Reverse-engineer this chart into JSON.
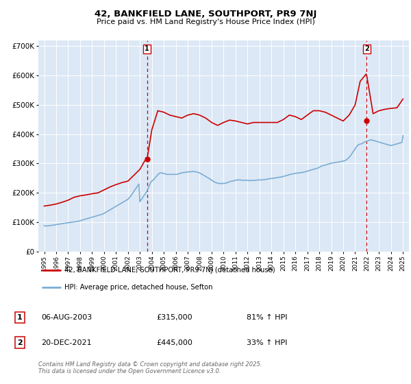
{
  "title": "42, BANKFIELD LANE, SOUTHPORT, PR9 7NJ",
  "subtitle": "Price paid vs. HM Land Registry's House Price Index (HPI)",
  "bg_color": "#dce8f5",
  "red_color": "#cc0000",
  "blue_color": "#7aadd4",
  "legend_label_red": "42, BANKFIELD LANE, SOUTHPORT, PR9 7NJ (detached house)",
  "legend_label_blue": "HPI: Average price, detached house, Sefton",
  "marker1_date_x": 2003.6,
  "marker1_price": 315000,
  "marker1_label": "1",
  "marker1_date_str": "06-AUG-2003",
  "marker1_price_str": "£315,000",
  "marker1_pct": "81% ↑ HPI",
  "marker2_date_x": 2021.97,
  "marker2_price": 445000,
  "marker2_label": "2",
  "marker2_date_str": "20-DEC-2021",
  "marker2_price_str": "£445,000",
  "marker2_pct": "33% ↑ HPI",
  "ylim_max": 720000,
  "xlim_min": 1994.5,
  "xlim_max": 2025.5,
  "yticks": [
    0,
    100000,
    200000,
    300000,
    400000,
    500000,
    600000,
    700000
  ],
  "ylabels": [
    "£0",
    "£100K",
    "£200K",
    "£300K",
    "£400K",
    "£500K",
    "£600K",
    "£700K"
  ],
  "xticks": [
    1995,
    1996,
    1997,
    1998,
    1999,
    2000,
    2001,
    2002,
    2003,
    2004,
    2005,
    2006,
    2007,
    2008,
    2009,
    2010,
    2011,
    2012,
    2013,
    2014,
    2015,
    2016,
    2017,
    2018,
    2019,
    2020,
    2021,
    2022,
    2023,
    2024,
    2025
  ],
  "footer": "Contains HM Land Registry data © Crown copyright and database right 2025.\nThis data is licensed under the Open Government Licence v3.0.",
  "hpi_dates": [
    1995.0,
    1995.08,
    1995.17,
    1995.25,
    1995.33,
    1995.42,
    1995.5,
    1995.58,
    1995.67,
    1995.75,
    1995.83,
    1995.92,
    1996.0,
    1996.08,
    1996.17,
    1996.25,
    1996.33,
    1996.42,
    1996.5,
    1996.58,
    1996.67,
    1996.75,
    1996.83,
    1996.92,
    1997.0,
    1997.08,
    1997.17,
    1997.25,
    1997.33,
    1997.42,
    1997.5,
    1997.58,
    1997.67,
    1997.75,
    1997.83,
    1997.92,
    1998.0,
    1998.08,
    1998.17,
    1998.25,
    1998.33,
    1998.42,
    1998.5,
    1998.58,
    1998.67,
    1998.75,
    1998.83,
    1998.92,
    1999.0,
    1999.08,
    1999.17,
    1999.25,
    1999.33,
    1999.42,
    1999.5,
    1999.58,
    1999.67,
    1999.75,
    1999.83,
    1999.92,
    2000.0,
    2000.08,
    2000.17,
    2000.25,
    2000.33,
    2000.42,
    2000.5,
    2000.58,
    2000.67,
    2000.75,
    2000.83,
    2000.92,
    2001.0,
    2001.08,
    2001.17,
    2001.25,
    2001.33,
    2001.42,
    2001.5,
    2001.58,
    2001.67,
    2001.75,
    2001.83,
    2001.92,
    2002.0,
    2002.08,
    2002.17,
    2002.25,
    2002.33,
    2002.42,
    2002.5,
    2002.58,
    2002.67,
    2002.75,
    2002.83,
    2002.92,
    2003.0,
    2003.08,
    2003.17,
    2003.25,
    2003.33,
    2003.42,
    2003.5,
    2003.58,
    2003.67,
    2003.75,
    2003.83,
    2003.92,
    2004.0,
    2004.08,
    2004.17,
    2004.25,
    2004.33,
    2004.42,
    2004.5,
    2004.58,
    2004.67,
    2004.75,
    2004.83,
    2004.92,
    2005.0,
    2005.08,
    2005.17,
    2005.25,
    2005.33,
    2005.42,
    2005.5,
    2005.58,
    2005.67,
    2005.75,
    2005.83,
    2005.92,
    2006.0,
    2006.08,
    2006.17,
    2006.25,
    2006.33,
    2006.42,
    2006.5,
    2006.58,
    2006.67,
    2006.75,
    2006.83,
    2006.92,
    2007.0,
    2007.08,
    2007.17,
    2007.25,
    2007.33,
    2007.42,
    2007.5,
    2007.58,
    2007.67,
    2007.75,
    2007.83,
    2007.92,
    2008.0,
    2008.08,
    2008.17,
    2008.25,
    2008.33,
    2008.42,
    2008.5,
    2008.58,
    2008.67,
    2008.75,
    2008.83,
    2008.92,
    2009.0,
    2009.08,
    2009.17,
    2009.25,
    2009.33,
    2009.42,
    2009.5,
    2009.58,
    2009.67,
    2009.75,
    2009.83,
    2009.92,
    2010.0,
    2010.08,
    2010.17,
    2010.25,
    2010.33,
    2010.42,
    2010.5,
    2010.58,
    2010.67,
    2010.75,
    2010.83,
    2010.92,
    2011.0,
    2011.08,
    2011.17,
    2011.25,
    2011.33,
    2011.42,
    2011.5,
    2011.58,
    2011.67,
    2011.75,
    2011.83,
    2011.92,
    2012.0,
    2012.08,
    2012.17,
    2012.25,
    2012.33,
    2012.42,
    2012.5,
    2012.58,
    2012.67,
    2012.75,
    2012.83,
    2012.92,
    2013.0,
    2013.08,
    2013.17,
    2013.25,
    2013.33,
    2013.42,
    2013.5,
    2013.58,
    2013.67,
    2013.75,
    2013.83,
    2013.92,
    2014.0,
    2014.08,
    2014.17,
    2014.25,
    2014.33,
    2014.42,
    2014.5,
    2014.58,
    2014.67,
    2014.75,
    2014.83,
    2014.92,
    2015.0,
    2015.08,
    2015.17,
    2015.25,
    2015.33,
    2015.42,
    2015.5,
    2015.58,
    2015.67,
    2015.75,
    2015.83,
    2015.92,
    2016.0,
    2016.08,
    2016.17,
    2016.25,
    2016.33,
    2016.42,
    2016.5,
    2016.58,
    2016.67,
    2016.75,
    2016.83,
    2016.92,
    2017.0,
    2017.08,
    2017.17,
    2017.25,
    2017.33,
    2017.42,
    2017.5,
    2017.58,
    2017.67,
    2017.75,
    2017.83,
    2017.92,
    2018.0,
    2018.08,
    2018.17,
    2018.25,
    2018.33,
    2018.42,
    2018.5,
    2018.58,
    2018.67,
    2018.75,
    2018.83,
    2018.92,
    2019.0,
    2019.08,
    2019.17,
    2019.25,
    2019.33,
    2019.42,
    2019.5,
    2019.58,
    2019.67,
    2019.75,
    2019.83,
    2019.92,
    2020.0,
    2020.08,
    2020.17,
    2020.25,
    2020.33,
    2020.42,
    2020.5,
    2020.58,
    2020.67,
    2020.75,
    2020.83,
    2020.92,
    2021.0,
    2021.08,
    2021.17,
    2021.25,
    2021.33,
    2021.42,
    2021.5,
    2021.58,
    2021.67,
    2021.75,
    2021.83,
    2021.92,
    2022.0,
    2022.08,
    2022.17,
    2022.25,
    2022.33,
    2022.42,
    2022.5,
    2022.58,
    2022.67,
    2022.75,
    2022.83,
    2022.92,
    2023.0,
    2023.08,
    2023.17,
    2023.25,
    2023.33,
    2023.42,
    2023.5,
    2023.58,
    2023.67,
    2023.75,
    2023.83,
    2023.92,
    2024.0,
    2024.08,
    2024.17,
    2024.25,
    2024.33,
    2024.42,
    2024.5,
    2024.58,
    2024.67,
    2024.75,
    2024.83,
    2024.92,
    2025.0
  ],
  "hpi_values": [
    88000,
    87500,
    87000,
    87000,
    87500,
    88000,
    88500,
    89000,
    89500,
    90000,
    90500,
    91000,
    92000,
    92500,
    93000,
    93500,
    94000,
    94500,
    95000,
    95500,
    96000,
    96500,
    97000,
    97500,
    98000,
    98500,
    99000,
    99500,
    100000,
    100500,
    101000,
    101500,
    102000,
    102500,
    103000,
    103500,
    105000,
    106000,
    107000,
    108000,
    109000,
    110000,
    111000,
    112000,
    113000,
    114000,
    115000,
    116000,
    117000,
    118000,
    119000,
    120000,
    121000,
    122000,
    123000,
    124000,
    125000,
    126000,
    127000,
    128000,
    130000,
    132000,
    134000,
    136000,
    138000,
    140000,
    142000,
    144000,
    146000,
    148000,
    150000,
    152000,
    154000,
    156000,
    158000,
    160000,
    162000,
    164000,
    166000,
    168000,
    170000,
    172000,
    174000,
    176000,
    178000,
    182000,
    186000,
    190000,
    195000,
    200000,
    205000,
    210000,
    215000,
    220000,
    225000,
    230000,
    170000,
    175000,
    180000,
    185000,
    190000,
    195000,
    200000,
    205000,
    213000,
    221000,
    229000,
    237000,
    240000,
    243000,
    246000,
    250000,
    254000,
    258000,
    262000,
    265000,
    267000,
    268000,
    268000,
    267000,
    266000,
    265000,
    264000,
    263000,
    263000,
    263000,
    263000,
    263000,
    263000,
    263000,
    263000,
    263000,
    263000,
    263000,
    264000,
    265000,
    266000,
    267000,
    268000,
    269000,
    269000,
    270000,
    270000,
    271000,
    271000,
    272000,
    272000,
    272000,
    272000,
    273000,
    273000,
    272000,
    272000,
    271000,
    270000,
    269000,
    268000,
    266000,
    264000,
    262000,
    260000,
    258000,
    256000,
    254000,
    252000,
    250000,
    248000,
    246000,
    243000,
    241000,
    239000,
    237000,
    235000,
    234000,
    233000,
    232000,
    232000,
    232000,
    232000,
    232000,
    232000,
    232000,
    233000,
    234000,
    235000,
    237000,
    238000,
    239000,
    240000,
    240000,
    241000,
    242000,
    243000,
    244000,
    244000,
    244000,
    244000,
    244000,
    243000,
    243000,
    243000,
    243000,
    243000,
    243000,
    243000,
    242000,
    242000,
    242000,
    242000,
    242000,
    242000,
    243000,
    243000,
    243000,
    244000,
    244000,
    244000,
    244000,
    244000,
    245000,
    245000,
    245000,
    246000,
    246000,
    247000,
    247000,
    248000,
    249000,
    249000,
    249000,
    250000,
    250000,
    251000,
    252000,
    252000,
    253000,
    253000,
    254000,
    254000,
    255000,
    256000,
    257000,
    258000,
    259000,
    260000,
    261000,
    262000,
    263000,
    264000,
    264000,
    265000,
    266000,
    266000,
    267000,
    267000,
    268000,
    268000,
    269000,
    269000,
    270000,
    270000,
    271000,
    272000,
    273000,
    274000,
    275000,
    276000,
    277000,
    278000,
    279000,
    280000,
    281000,
    282000,
    283000,
    284000,
    285000,
    287000,
    289000,
    291000,
    292000,
    293000,
    294000,
    295000,
    296000,
    297000,
    298000,
    299000,
    300000,
    301000,
    302000,
    302000,
    303000,
    303000,
    304000,
    304000,
    305000,
    306000,
    306000,
    307000,
    308000,
    308000,
    309000,
    310000,
    312000,
    315000,
    318000,
    321000,
    325000,
    330000,
    335000,
    340000,
    345000,
    350000,
    355000,
    360000,
    363000,
    365000,
    366000,
    367000,
    368000,
    370000,
    373000,
    374000,
    375000,
    377000,
    378000,
    379000,
    380000,
    381000,
    380000,
    379000,
    378000,
    377000,
    376000,
    375000,
    374000,
    373000,
    372000,
    371000,
    370000,
    369000,
    368000,
    367000,
    366000,
    365000,
    364000,
    363000,
    362000,
    361000,
    362000,
    363000,
    364000,
    365000,
    366000,
    367000,
    368000,
    369000,
    370000,
    371000,
    372000,
    395000
  ],
  "red_dates": [
    1995.0,
    1995.5,
    1996.0,
    1996.5,
    1997.0,
    1997.5,
    1998.0,
    1998.5,
    1999.0,
    1999.5,
    2000.0,
    2000.5,
    2001.0,
    2001.5,
    2002.0,
    2002.5,
    2003.0,
    2003.42,
    2003.6,
    2004.0,
    2004.5,
    2005.0,
    2005.5,
    2006.0,
    2006.5,
    2007.0,
    2007.5,
    2008.0,
    2008.5,
    2009.0,
    2009.5,
    2010.0,
    2010.5,
    2011.0,
    2011.5,
    2012.0,
    2012.5,
    2013.0,
    2013.5,
    2014.0,
    2014.5,
    2015.0,
    2015.5,
    2016.0,
    2016.5,
    2017.0,
    2017.5,
    2018.0,
    2018.5,
    2019.0,
    2019.5,
    2020.0,
    2020.5,
    2021.0,
    2021.42,
    2021.92,
    2021.97,
    2022.5,
    2023.0,
    2023.5,
    2024.0,
    2024.5,
    2025.0
  ],
  "red_values": [
    155000,
    158000,
    162000,
    168000,
    175000,
    185000,
    190000,
    193000,
    197000,
    200000,
    210000,
    220000,
    228000,
    235000,
    240000,
    260000,
    280000,
    310000,
    315000,
    415000,
    480000,
    475000,
    465000,
    460000,
    455000,
    465000,
    470000,
    465000,
    455000,
    440000,
    430000,
    440000,
    448000,
    445000,
    440000,
    435000,
    440000,
    440000,
    440000,
    440000,
    440000,
    450000,
    465000,
    460000,
    450000,
    465000,
    480000,
    480000,
    475000,
    465000,
    455000,
    445000,
    465000,
    500000,
    580000,
    605000,
    600000,
    470000,
    480000,
    485000,
    488000,
    490000,
    520000
  ]
}
